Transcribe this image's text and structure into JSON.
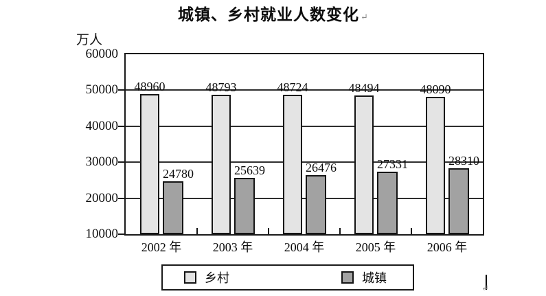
{
  "chart_data": {
    "type": "bar",
    "title": "城镇、乡村就业人数变化",
    "unit_label": "万人",
    "categories": [
      "2002 年",
      "2003 年",
      "2004 年",
      "2005 年",
      "2006 年"
    ],
    "series": [
      {
        "name": "乡村",
        "color": "#e4e4e4",
        "values": [
          48960,
          48793,
          48724,
          48494,
          48090
        ]
      },
      {
        "name": "城镇",
        "color": "#a2a2a2",
        "values": [
          24780,
          25639,
          26476,
          27331,
          28310
        ]
      }
    ],
    "ylim": [
      10000,
      60000
    ],
    "yticks": [
      60000,
      50000,
      40000,
      30000,
      20000,
      10000
    ],
    "grid": true,
    "data_labels": true,
    "legend_position": "bottom",
    "line_color": "#1a1a1a"
  },
  "marks": {
    "title_return": "↵",
    "cursor_return": "↵"
  }
}
